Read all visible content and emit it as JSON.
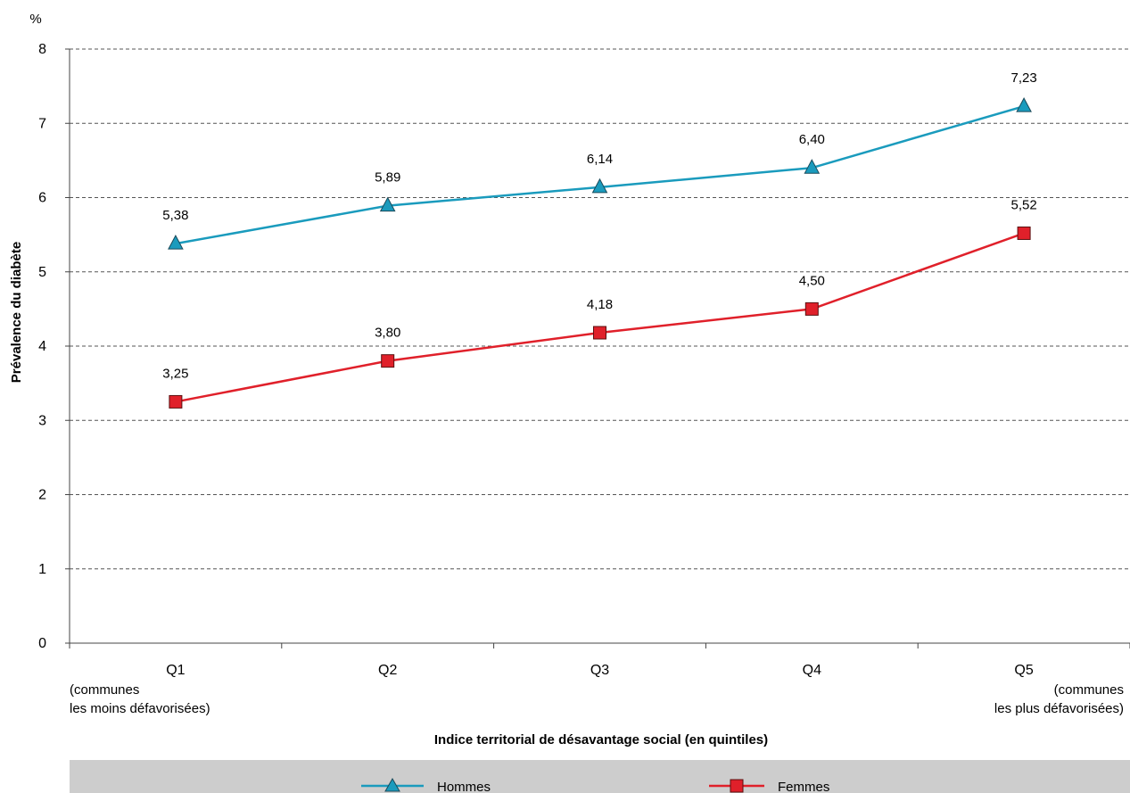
{
  "chart_data": {
    "type": "line",
    "unit_label": "%",
    "ylabel": "Prévalence du diabète",
    "xlabel": "Indice territorial de désavantage social (en quintiles)",
    "categories": [
      "Q1",
      "Q2",
      "Q3",
      "Q4",
      "Q5"
    ],
    "first_category_note": [
      "(communes",
      "les moins défavorisées)"
    ],
    "last_category_note": [
      "(communes",
      "les plus défavorisées)"
    ],
    "ylim": [
      0,
      8
    ],
    "yticks": [
      "0",
      "1",
      "2",
      "3",
      "4",
      "5",
      "6",
      "7",
      "8"
    ],
    "grid": "horizontal dashed",
    "legend_position": "bottom",
    "series": [
      {
        "name": "Hommes",
        "color": "#1a9bbd",
        "marker": "triangle",
        "values": [
          5.38,
          5.89,
          6.14,
          6.4,
          7.23
        ],
        "labels": [
          "5,38",
          "5,89",
          "6,14",
          "6,40",
          "7,23"
        ]
      },
      {
        "name": "Femmes",
        "color": "#e0202a",
        "marker": "square",
        "values": [
          3.25,
          3.8,
          4.18,
          4.5,
          5.52
        ],
        "labels": [
          "3,25",
          "3,80",
          "4,18",
          "4,50",
          "5,52"
        ]
      }
    ]
  }
}
